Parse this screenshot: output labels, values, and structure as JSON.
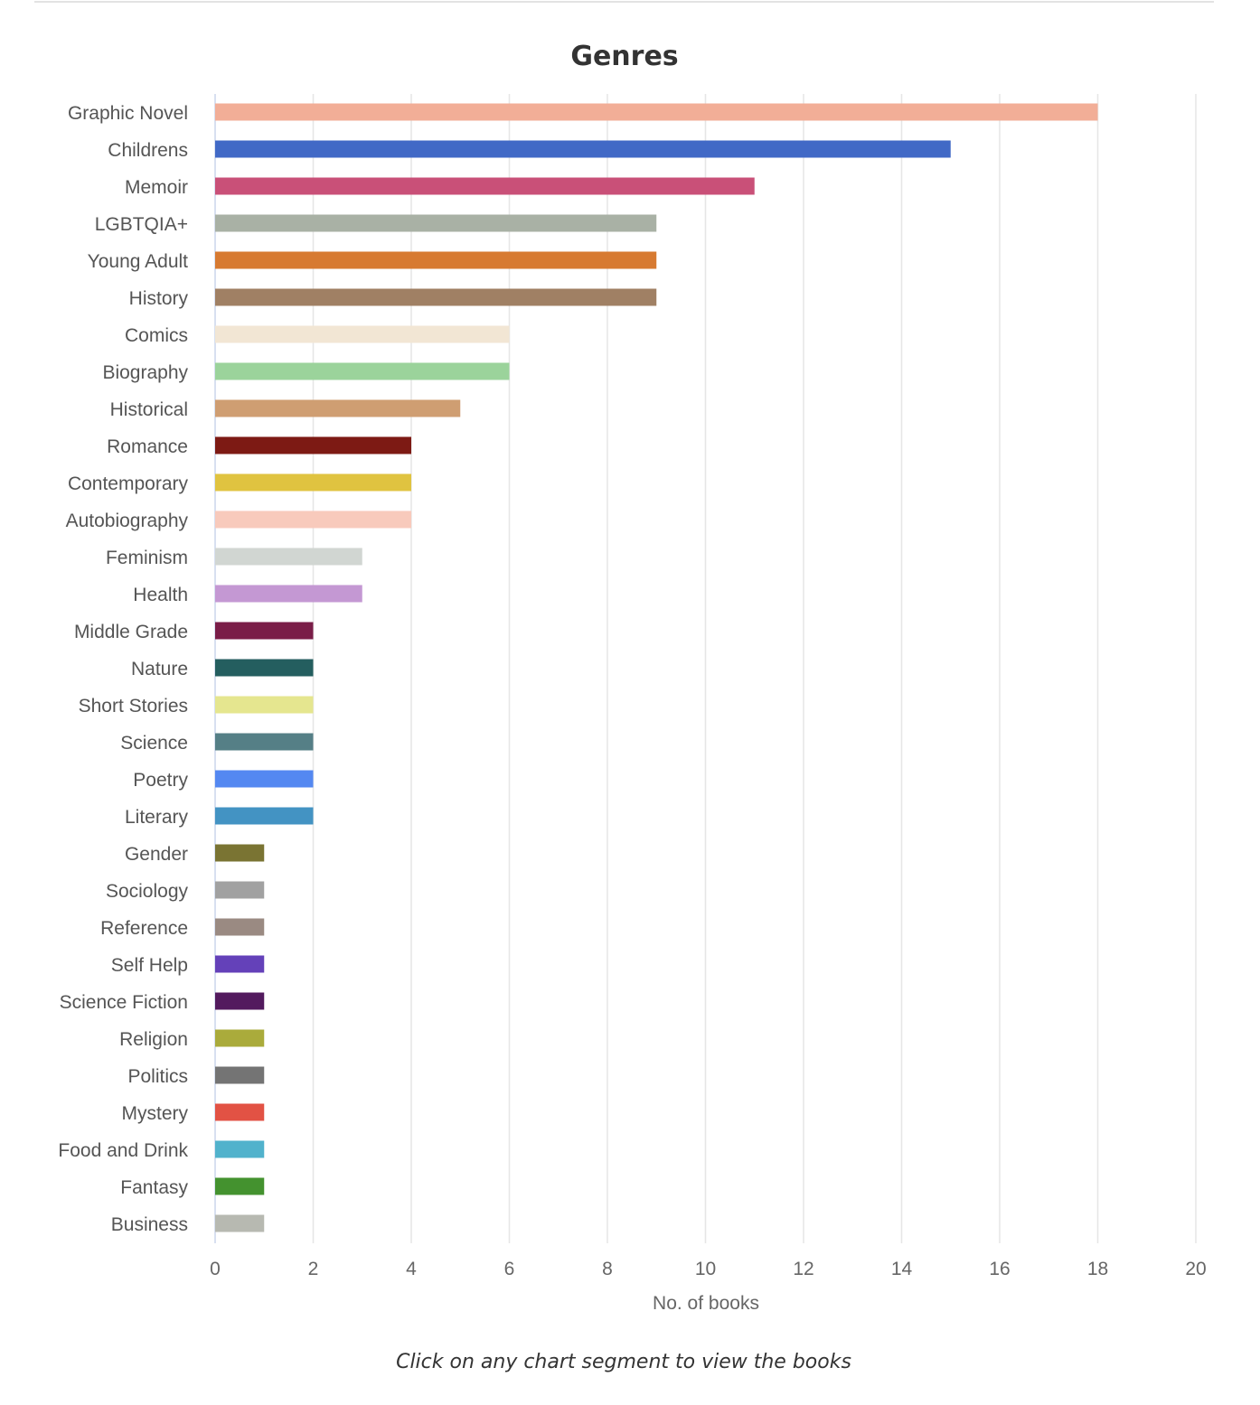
{
  "caption": "Click on any chart segment to view the books",
  "chart_data": {
    "type": "bar",
    "orientation": "horizontal",
    "title": "Genres",
    "xlabel": "No. of books",
    "ylabel": "",
    "xlim": [
      0,
      20
    ],
    "xticks": [
      "0",
      "2",
      "4",
      "6",
      "8",
      "10",
      "12",
      "14",
      "16",
      "18",
      "20"
    ],
    "grid": true,
    "categories": [
      "Graphic Novel",
      "Childrens",
      "Memoir",
      "LGBTQIA+",
      "Young Adult",
      "History",
      "Comics",
      "Biography",
      "Historical",
      "Romance",
      "Contemporary",
      "Autobiography",
      "Feminism",
      "Health",
      "Middle Grade",
      "Nature",
      "Short Stories",
      "Science",
      "Poetry",
      "Literary",
      "Gender",
      "Sociology",
      "Reference",
      "Self Help",
      "Science Fiction",
      "Religion",
      "Politics",
      "Mystery",
      "Food and Drink",
      "Fantasy",
      "Business"
    ],
    "values": [
      18,
      15,
      11,
      9,
      9,
      9,
      6,
      6,
      5,
      4,
      4,
      4,
      3,
      3,
      2,
      2,
      2,
      2,
      2,
      2,
      1,
      1,
      1,
      1,
      1,
      1,
      1,
      1,
      1,
      1,
      1
    ],
    "colors": [
      "#f2ae97",
      "#4169c6",
      "#c95078",
      "#a9b1a5",
      "#d77a31",
      "#a08064",
      "#f2e6d4",
      "#9bd39b",
      "#cf9e72",
      "#7d1a14",
      "#e0c340",
      "#f8cabc",
      "#d1d6d2",
      "#c498d3",
      "#7a1d48",
      "#245e5f",
      "#e5e68f",
      "#557f86",
      "#5488f1",
      "#4393c3",
      "#7a7433",
      "#a1a1a1",
      "#9a8a82",
      "#6441b9",
      "#531a5e",
      "#aaab3b",
      "#747474",
      "#e25244",
      "#51b2cc",
      "#44922f",
      "#b7b9b1"
    ]
  }
}
